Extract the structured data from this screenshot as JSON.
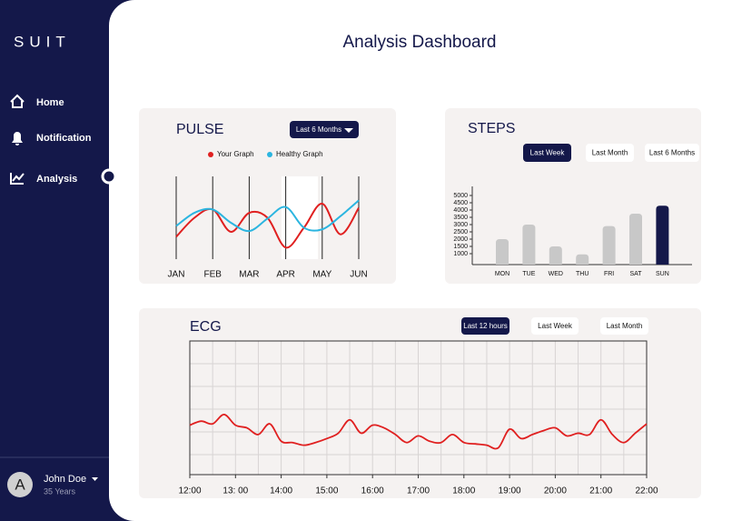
{
  "sidebar": {
    "brand": "SUIT",
    "nav": [
      "Home",
      "Notification",
      "Analysis"
    ],
    "user": {
      "avatar": "A",
      "name": "John Doe",
      "age": "35 Years"
    }
  },
  "header": {
    "title": "Analysis Dashboard"
  },
  "pulse": {
    "filter": "Last 6 Months",
    "chart_data": {
      "type": "line",
      "title": "PULSE",
      "categories": [
        "JAN",
        null,
        "FEB",
        null,
        "MAR",
        null,
        "APR",
        null,
        "MAY",
        null,
        "JUN"
      ],
      "series": [
        {
          "name": "Your Graph",
          "color": "#e02020",
          "values": [
            27,
            50,
            60,
            33,
            56,
            50,
            14,
            38,
            67,
            30,
            62
          ]
        },
        {
          "name": "Healthy Graph",
          "color": "#2bb5e0",
          "values": [
            40,
            56,
            60,
            44,
            34,
            49,
            63,
            38,
            36,
            52,
            71
          ]
        }
      ]
    }
  },
  "steps": {
    "filters": [
      "Last Week",
      "Last Month",
      "Last 6 Months"
    ],
    "chart_data": {
      "type": "bar",
      "title": "STEPS",
      "categories": [
        "MON",
        "TUE",
        "WED",
        "THU",
        "FRI",
        "SAT",
        "SUN"
      ],
      "values": [
        2000,
        3000,
        1500,
        950,
        2900,
        3750,
        4300
      ],
      "colors": [
        "#c8c8c8",
        "#c8c8c8",
        "#c8c8c8",
        "#c8c8c8",
        "#c8c8c8",
        "#c8c8c8",
        "#14184a"
      ],
      "ylim": [
        250,
        5250
      ],
      "yticks": [
        1000,
        1500,
        2000,
        2500,
        3000,
        3500,
        4000,
        4500,
        5000
      ]
    }
  },
  "ecg": {
    "filters": [
      "Last 12 hours",
      "Last Week",
      "Last Month"
    ],
    "chart_data": {
      "type": "line",
      "title": "ECG",
      "color": "#e02020",
      "x": [
        12,
        12.25,
        12.5,
        12.75,
        13,
        13.25,
        13.5,
        13.75,
        14,
        14.25,
        14.5,
        14.75,
        15,
        15.25,
        15.5,
        15.75,
        16,
        16.25,
        16.5,
        16.75,
        17,
        17.25,
        17.5,
        17.75,
        18,
        18.25,
        18.5,
        18.75,
        19,
        19.25,
        19.5,
        19.75,
        20,
        20.25,
        20.5,
        20.75,
        21,
        21.25,
        21.5,
        21.75,
        22
      ],
      "values": [
        37,
        40,
        38,
        45,
        37,
        35,
        30,
        38,
        25,
        24,
        22,
        24,
        27,
        31,
        41,
        31,
        37,
        35,
        30,
        24,
        29,
        25,
        24,
        30,
        24,
        23,
        22,
        20,
        34,
        27,
        30,
        33,
        35,
        29,
        31,
        30,
        41,
        30,
        24,
        31,
        38
      ],
      "xlim": [
        12,
        22
      ],
      "xticks": [
        {
          "value": 12,
          "label": "12:00"
        },
        {
          "value": 13,
          "label": "13: 00"
        },
        {
          "value": 14,
          "label": "14:00"
        },
        {
          "value": 15,
          "label": "15:00"
        },
        {
          "value": 16,
          "label": "16:00"
        },
        {
          "value": 17,
          "label": "17:00"
        },
        {
          "value": 18,
          "label": "18:00"
        },
        {
          "value": 19,
          "label": "19:00"
        },
        {
          "value": 20,
          "label": "20:00"
        },
        {
          "value": 21,
          "label": "21:00"
        },
        {
          "value": 22,
          "label": "22:00"
        }
      ],
      "grid": true
    }
  }
}
